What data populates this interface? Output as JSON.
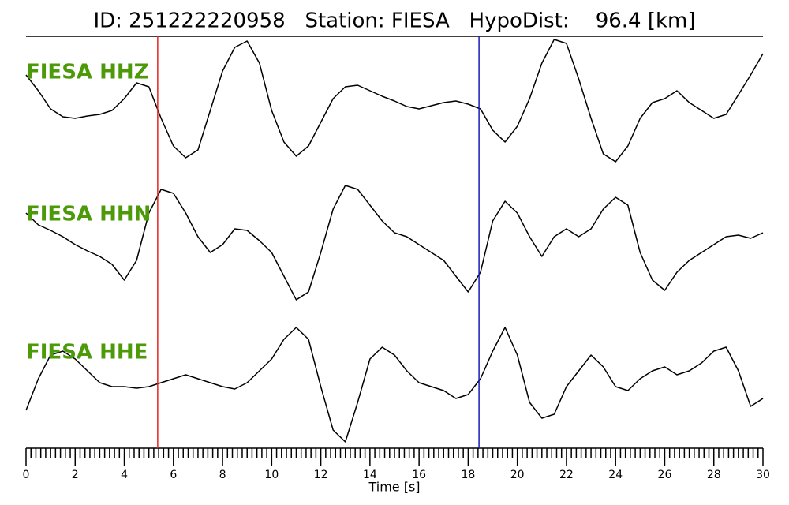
{
  "chart_data": {
    "type": "line",
    "title": "ID: 251222220958   Station: FIESA   HypoDist:    96.4 [km]",
    "xlabel": "Time [s]",
    "xlim": [
      0,
      30
    ],
    "xticks": [
      0,
      2,
      4,
      6,
      8,
      10,
      12,
      14,
      16,
      18,
      20,
      22,
      24,
      26,
      28,
      30
    ],
    "minor_tick_step": 0.2,
    "ylim": [
      -82,
      82
    ],
    "x": [
      0,
      0.5,
      1,
      1.5,
      2,
      2.5,
      3,
      3.5,
      4,
      4.5,
      5,
      5.5,
      6,
      6.5,
      7,
      7.5,
      8,
      8.5,
      9,
      9.5,
      10,
      10.5,
      11,
      11.5,
      12,
      12.5,
      13,
      13.5,
      14,
      14.5,
      15,
      15.5,
      16,
      16.5,
      17,
      17.5,
      18,
      18.5,
      19,
      19.5,
      20,
      20.5,
      21,
      21.5,
      22,
      22.5,
      23,
      23.5,
      24,
      24.5,
      25,
      25.5,
      26,
      26.5,
      27,
      27.5,
      28,
      28.5,
      29,
      29.5,
      30
    ],
    "series": [
      {
        "name": "FIESA HHZ",
        "color": "#000000",
        "values": [
          35,
          15,
          -8,
          -18,
          -20,
          -17,
          -15,
          -10,
          5,
          25,
          20,
          -20,
          -55,
          -70,
          -60,
          -10,
          40,
          70,
          78,
          50,
          -10,
          -50,
          -68,
          -55,
          -25,
          5,
          20,
          22,
          15,
          8,
          2,
          -5,
          -8,
          -4,
          0,
          2,
          -2,
          -8,
          -35,
          -50,
          -30,
          5,
          50,
          80,
          75,
          30,
          -20,
          -65,
          -75,
          -55,
          -20,
          0,
          5,
          15,
          0,
          -10,
          -20,
          -15,
          10,
          35,
          62
        ]
      },
      {
        "name": "FIESA HHN",
        "color": "#000000",
        "values": [
          40,
          25,
          18,
          10,
          0,
          -8,
          -15,
          -25,
          -45,
          -20,
          40,
          70,
          65,
          40,
          10,
          -10,
          0,
          20,
          18,
          5,
          -10,
          -40,
          -70,
          -60,
          -10,
          45,
          75,
          70,
          50,
          30,
          15,
          10,
          0,
          -10,
          -20,
          -40,
          -60,
          -35,
          30,
          55,
          40,
          10,
          -15,
          10,
          20,
          10,
          20,
          45,
          60,
          50,
          -10,
          -45,
          -58,
          -35,
          -20,
          -10,
          0,
          10,
          12,
          8,
          15
        ]
      },
      {
        "name": "FIESA HHE",
        "color": "#000000",
        "values": [
          -35,
          5,
          35,
          40,
          30,
          15,
          0,
          -5,
          -5,
          -7,
          -5,
          0,
          5,
          10,
          5,
          0,
          -5,
          -8,
          0,
          15,
          30,
          55,
          70,
          55,
          -5,
          -60,
          -75,
          -25,
          30,
          45,
          35,
          15,
          0,
          -5,
          -10,
          -20,
          -15,
          5,
          40,
          70,
          35,
          -25,
          -45,
          -40,
          -5,
          15,
          35,
          20,
          -5,
          -10,
          5,
          15,
          20,
          10,
          15,
          25,
          40,
          45,
          15,
          -30,
          -20
        ]
      }
    ],
    "vlines": [
      {
        "x": 5.36,
        "color": "#e8241c"
      },
      {
        "x": 18.44,
        "color": "#1a1ab8"
      }
    ]
  }
}
